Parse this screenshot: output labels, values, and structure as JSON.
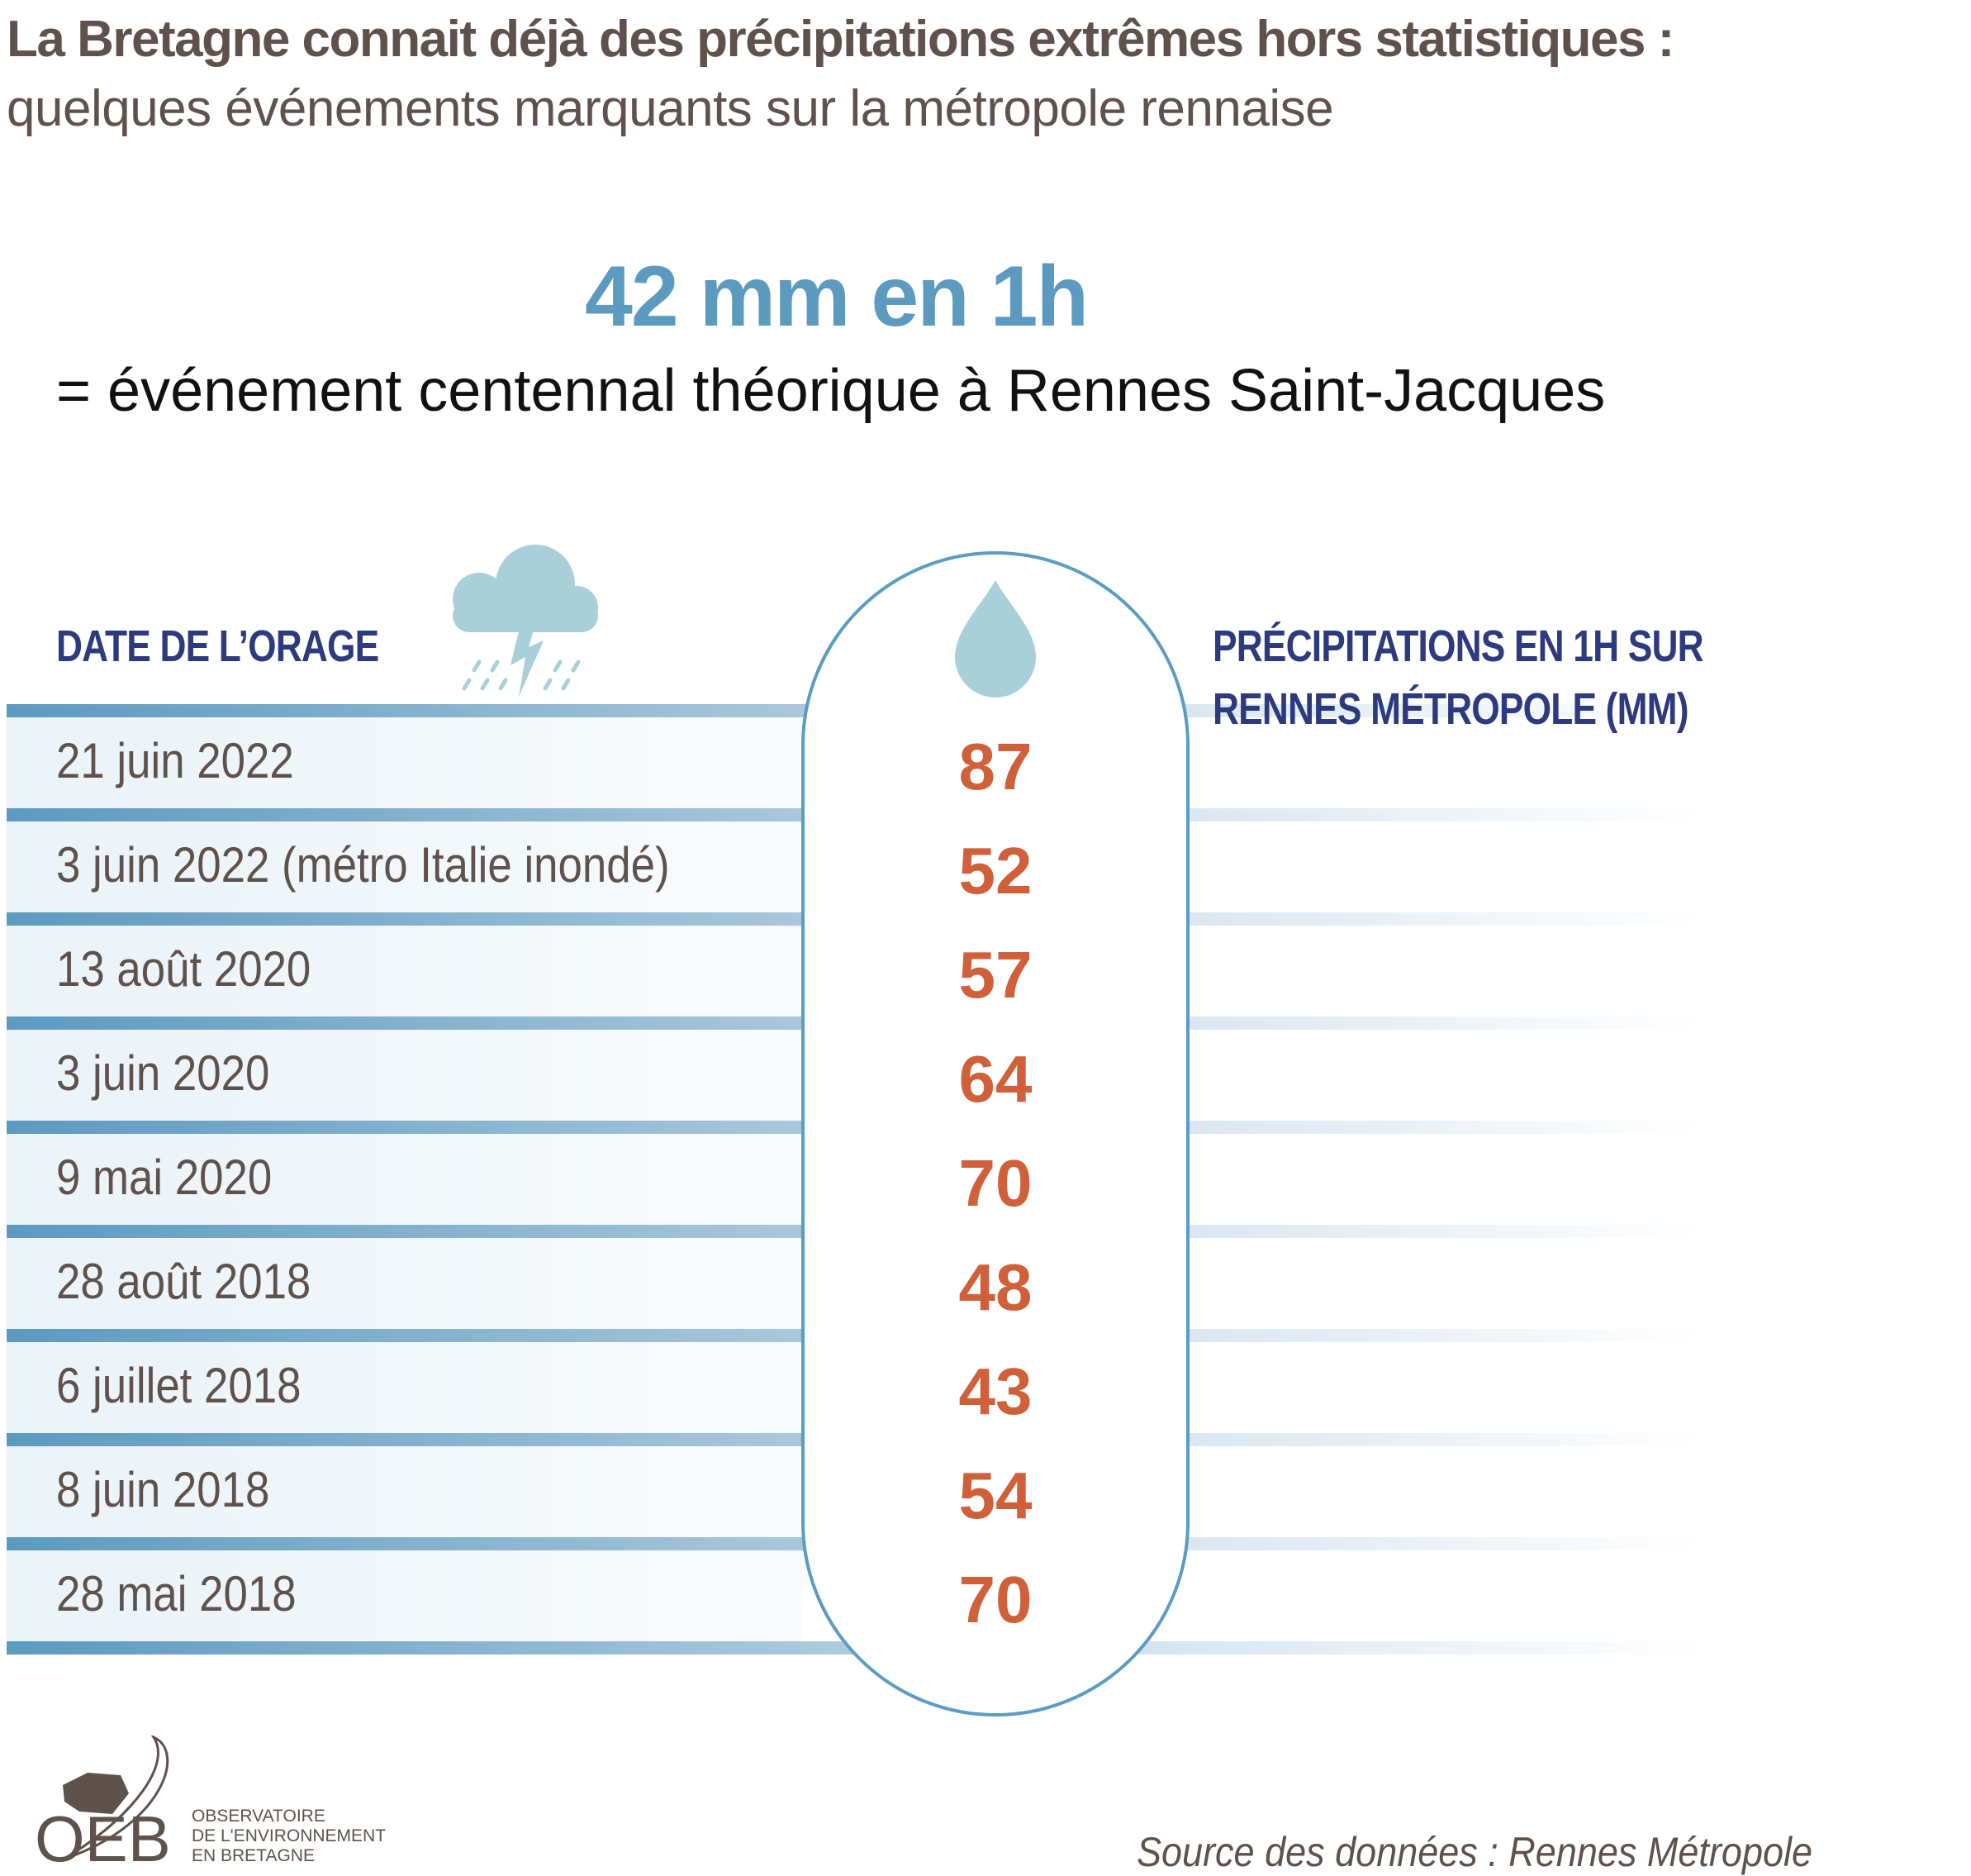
{
  "title": "La Bretagne connait déjà des précipitations extrêmes hors statistiques :",
  "subtitle": "quelques événements marquants sur la métropole rennaise",
  "headline": "42 mm en 1h",
  "explanation": "= événement centennal théorique à Rennes Saint-Jacques",
  "table": {
    "date_header": "DATE DE L’ORAGE",
    "precip_header_line1": "PRÉCIPITATIONS EN 1H SUR",
    "precip_header_line2": "RENNES MÉTROPOLE (MM)",
    "rows": [
      {
        "date": "21 juin 2022",
        "value": "87"
      },
      {
        "date": "3 juin 2022 (métro Italie inondé)",
        "value": "52"
      },
      {
        "date": "13 août 2020",
        "value": "57"
      },
      {
        "date": "3 juin 2020",
        "value": "64"
      },
      {
        "date": "9 mai 2020",
        "value": "70"
      },
      {
        "date": "28 août 2018",
        "value": "48"
      },
      {
        "date": "6 juillet 2018",
        "value": "43"
      },
      {
        "date": "8 juin 2018",
        "value": "54"
      },
      {
        "date": "28 mai 2018",
        "value": "70"
      }
    ]
  },
  "icons": {
    "cloud": "storm-cloud-icon",
    "drop": "water-drop-icon"
  },
  "logo": {
    "acronym": "OEB",
    "line1": "OBSERVATOIRE",
    "line2": "DE L'ENVIRONNEMENT",
    "line3": "EN BRETAGNE"
  },
  "source": "Source des données : Rennes Métropole",
  "colors": {
    "title": "#5f514b",
    "accent_blue": "#5c9ac0",
    "header_navy": "#2e3a7e",
    "value_orange": "#d0603a",
    "cloud": "#a9cfd8"
  }
}
